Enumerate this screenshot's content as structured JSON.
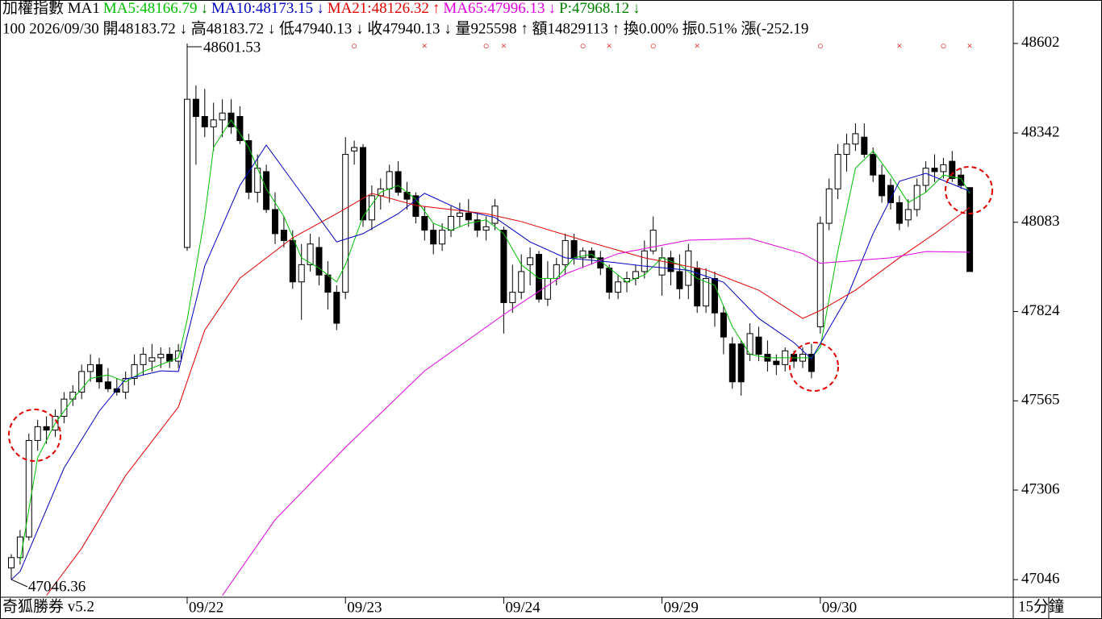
{
  "header": {
    "line1": [
      {
        "text": "加權指數 MA1",
        "color": "#000000"
      },
      {
        "text": "MA5:48166.79",
        "color": "#00c000"
      },
      {
        "text": "↓",
        "color": "#008000"
      },
      {
        "text": "MA10:48173.15",
        "color": "#0000c0"
      },
      {
        "text": "↓",
        "color": "#0000c0"
      },
      {
        "text": "MA21:48126.32",
        "color": "#e00000"
      },
      {
        "text": "↑",
        "color": "#e00000"
      },
      {
        "text": "MA65:47996.13",
        "color": "#e000e0"
      },
      {
        "text": "↓",
        "color": "#e000e0"
      },
      {
        "text": "P:47968.12",
        "color": "#008000"
      },
      {
        "text": "↓",
        "color": "#008000"
      }
    ],
    "line2": "100 2026/09/30 開48183.72 ↓ 高48183.72 ↓ 低47940.13 ↓ 收47940.13 ↓ 量925598 ↑ 額14829113 ↑ 換0.00% 振0.51% 漲(-252.19"
  },
  "footer": {
    "brand": "奇狐勝券 v5.2",
    "period": "15分鐘"
  },
  "chart_data": {
    "type": "candlestick",
    "categories": [
      null,
      null,
      null,
      null,
      null,
      null,
      null,
      null,
      null,
      null,
      null,
      null,
      null,
      null,
      null,
      null,
      null,
      null,
      null,
      null,
      "09/22",
      null,
      null,
      null,
      null,
      null,
      null,
      null,
      null,
      null,
      null,
      null,
      null,
      null,
      null,
      null,
      null,
      null,
      "09/23",
      null,
      null,
      null,
      null,
      null,
      null,
      null,
      null,
      null,
      null,
      null,
      null,
      null,
      null,
      null,
      null,
      null,
      "09/24",
      null,
      null,
      null,
      null,
      null,
      null,
      null,
      null,
      null,
      null,
      null,
      null,
      null,
      null,
      null,
      null,
      null,
      "09/29",
      null,
      null,
      null,
      null,
      null,
      null,
      null,
      null,
      null,
      null,
      null,
      null,
      null,
      null,
      null,
      null,
      null,
      "09/30",
      null,
      null,
      null,
      null,
      null,
      null,
      null,
      null,
      null,
      null,
      null,
      null,
      null,
      null,
      null,
      null,
      null
    ],
    "ohlc": [
      [
        47080,
        47120,
        47046.36,
        47110
      ],
      [
        47110,
        47190,
        47090,
        47170
      ],
      [
        47170,
        47470,
        47160,
        47450
      ],
      [
        47450,
        47510,
        47420,
        47490
      ],
      [
        47490,
        47520,
        47440,
        47480
      ],
      [
        47480,
        47540,
        47460,
        47520
      ],
      [
        47520,
        47590,
        47500,
        47570
      ],
      [
        47570,
        47610,
        47550,
        47590
      ],
      [
        47590,
        47670,
        47570,
        47650
      ],
      [
        47650,
        47700,
        47620,
        47670
      ],
      [
        47670,
        47690,
        47600,
        47620
      ],
      [
        47620,
        47660,
        47590,
        47600
      ],
      [
        47600,
        47630,
        47580,
        47590
      ],
      [
        47590,
        47650,
        47570,
        47630
      ],
      [
        47630,
        47700,
        47610,
        47670
      ],
      [
        47670,
        47720,
        47640,
        47700
      ],
      [
        47680,
        47730,
        47650,
        47690
      ],
      [
        47690,
        47720,
        47660,
        47700
      ],
      [
        47700,
        47720,
        47660,
        47680
      ],
      [
        47680,
        47730,
        47660,
        47710
      ],
      [
        48010,
        48601.53,
        48000,
        48440
      ],
      [
        48440,
        48480,
        48250,
        48390
      ],
      [
        48390,
        48470,
        48330,
        48360
      ],
      [
        48360,
        48430,
        48290,
        48380
      ],
      [
        48380,
        48440,
        48330,
        48400
      ],
      [
        48400,
        48440,
        48340,
        48360
      ],
      [
        48390,
        48420,
        48310,
        48320
      ],
      [
        48320,
        48340,
        48150,
        48170
      ],
      [
        48170,
        48280,
        48140,
        48240
      ],
      [
        48230,
        48250,
        48110,
        48120
      ],
      [
        48120,
        48170,
        48020,
        48050
      ],
      [
        48060,
        48100,
        48010,
        48030
      ],
      [
        48030,
        48060,
        47890,
        47910
      ],
      [
        47910,
        48020,
        47800,
        47960
      ],
      [
        47960,
        48050,
        47940,
        48020
      ],
      [
        48010,
        48040,
        47900,
        47930
      ],
      [
        47930,
        47970,
        47830,
        47880
      ],
      [
        47880,
        47900,
        47770,
        47790
      ],
      [
        47880,
        48330,
        47860,
        48280
      ],
      [
        48290,
        48320,
        48250,
        48300
      ],
      [
        48300,
        48310,
        48070,
        48090
      ],
      [
        48090,
        48190,
        48060,
        48160
      ],
      [
        48160,
        48210,
        48120,
        48180
      ],
      [
        48180,
        48250,
        48140,
        48230
      ],
      [
        48230,
        48260,
        48160,
        48170
      ],
      [
        48170,
        48200,
        48120,
        48150
      ],
      [
        48160,
        48170,
        48080,
        48100
      ],
      [
        48100,
        48130,
        48030,
        48060
      ],
      [
        48060,
        48080,
        47990,
        48020
      ],
      [
        48020,
        48080,
        48000,
        48060
      ],
      [
        48060,
        48130,
        48040,
        48100
      ],
      [
        48100,
        48140,
        48070,
        48110
      ],
      [
        48110,
        48150,
        48070,
        48090
      ],
      [
        48090,
        48110,
        48040,
        48060
      ],
      [
        48060,
        48100,
        48030,
        48070
      ],
      [
        48080,
        48150,
        48060,
        48130
      ],
      [
        48060,
        48070,
        47760,
        47850
      ],
      [
        47850,
        47960,
        47820,
        47880
      ],
      [
        47880,
        47990,
        47860,
        47940
      ],
      [
        47960,
        48010,
        47900,
        47980
      ],
      [
        47990,
        48000,
        47850,
        47860
      ],
      [
        47860,
        47970,
        47840,
        47920
      ],
      [
        47920,
        47980,
        47900,
        47960
      ],
      [
        47960,
        48050,
        47930,
        48030
      ],
      [
        48030,
        48050,
        47960,
        47980
      ],
      [
        47980,
        48010,
        47950,
        48000
      ],
      [
        48000,
        48010,
        47960,
        47980
      ],
      [
        47980,
        48000,
        47930,
        47950
      ],
      [
        47950,
        47960,
        47860,
        47880
      ],
      [
        47880,
        47930,
        47860,
        47910
      ],
      [
        47910,
        47940,
        47880,
        47920
      ],
      [
        47920,
        47960,
        47900,
        47940
      ],
      [
        47940,
        48030,
        47920,
        48000
      ],
      [
        48000,
        48100,
        47990,
        48060
      ],
      [
        47930,
        48010,
        47870,
        47980
      ],
      [
        47980,
        48000,
        47900,
        47940
      ],
      [
        47940,
        47990,
        47860,
        47890
      ],
      [
        47900,
        48020,
        47860,
        48000
      ],
      [
        47950,
        47970,
        47820,
        47840
      ],
      [
        47840,
        47950,
        47820,
        47920
      ],
      [
        47920,
        47940,
        47780,
        47820
      ],
      [
        47820,
        47840,
        47700,
        47750
      ],
      [
        47730,
        47750,
        47600,
        47620
      ],
      [
        47730,
        47740,
        47580,
        47620
      ],
      [
        47700,
        47790,
        47680,
        47760
      ],
      [
        47750,
        47780,
        47680,
        47700
      ],
      [
        47700,
        47740,
        47650,
        47680
      ],
      [
        47680,
        47700,
        47640,
        47670
      ],
      [
        47670,
        47720,
        47650,
        47710
      ],
      [
        47700,
        47710,
        47660,
        47680
      ],
      [
        47680,
        47720,
        47660,
        47700
      ],
      [
        47700,
        47730,
        47630,
        47650
      ],
      [
        47780,
        48100,
        47760,
        48080
      ],
      [
        48080,
        48210,
        48060,
        48180
      ],
      [
        48180,
        48310,
        48150,
        48280
      ],
      [
        48280,
        48340,
        48230,
        48310
      ],
      [
        48310,
        48370,
        48290,
        48340
      ],
      [
        48330,
        48370,
        48270,
        48280
      ],
      [
        48280,
        48300,
        48200,
        48220
      ],
      [
        48220,
        48250,
        48140,
        48160
      ],
      [
        48190,
        48210,
        48120,
        48140
      ],
      [
        48140,
        48160,
        48060,
        48080
      ],
      [
        48090,
        48150,
        48070,
        48120
      ],
      [
        48120,
        48210,
        48100,
        48190
      ],
      [
        48190,
        48260,
        48170,
        48240
      ],
      [
        48240,
        48280,
        48200,
        48230
      ],
      [
        48230,
        48270,
        48210,
        48250
      ],
      [
        48260,
        48290,
        48200,
        48210
      ],
      [
        48220,
        48240,
        48180,
        48190
      ],
      [
        48183.72,
        48183.72,
        47940.13,
        47940.13
      ]
    ],
    "up_color": "#ffffff",
    "down_color": "#000000",
    "series": [
      {
        "color": "#00c000",
        "x": [
          1,
          3,
          5,
          7,
          9,
          11,
          13,
          15,
          17,
          19,
          20,
          22,
          23,
          25,
          27,
          29,
          31,
          33,
          35,
          37,
          38,
          40,
          42,
          44,
          46,
          48,
          50,
          52,
          54,
          56,
          58,
          60,
          62,
          64,
          66,
          68,
          70,
          72,
          74,
          76,
          78,
          80,
          82,
          84,
          86,
          88,
          90,
          91,
          92,
          94,
          96,
          98,
          100,
          102,
          104,
          106,
          108,
          109
        ],
        "values": [
          47100,
          47400,
          47500,
          47570,
          47630,
          47640,
          47620,
          47650,
          47670,
          47690,
          47800,
          48100,
          48300,
          48380,
          48300,
          48180,
          48100,
          47980,
          47950,
          47910,
          47960,
          48100,
          48170,
          48190,
          48150,
          48080,
          48060,
          48080,
          48090,
          48050,
          47960,
          47920,
          47920,
          47980,
          47990,
          47950,
          47910,
          47930,
          47980,
          47960,
          47920,
          47900,
          47780,
          47700,
          47690,
          47690,
          47690,
          47690,
          47720,
          48000,
          48240,
          48290,
          48220,
          48140,
          48170,
          48220,
          48210,
          48166.79
        ]
      },
      {
        "color": "#0000c0",
        "x": [
          0,
          1,
          6,
          10,
          13,
          17,
          19,
          22,
          26,
          29,
          33,
          37,
          40,
          44,
          47,
          51,
          55,
          59,
          63,
          68,
          72,
          77,
          81,
          85,
          89,
          91,
          95,
          98,
          101,
          104,
          109
        ],
        "values": [
          47046,
          47070,
          47370,
          47535,
          47628,
          47652,
          47650,
          47956,
          48190,
          48307,
          48167,
          48026,
          48050,
          48108,
          48167,
          48120,
          48097,
          48026,
          47980,
          47968,
          47956,
          47944,
          47909,
          47804,
          47734,
          47687,
          47863,
          48050,
          48202,
          48225,
          48173.15
        ]
      },
      {
        "color": "#e00000",
        "x": [
          4,
          8,
          13,
          19,
          22,
          26,
          32,
          37,
          41,
          46,
          54,
          58,
          65,
          72,
          79,
          85,
          90,
          92,
          96,
          101,
          105,
          109
        ],
        "values": [
          47000,
          47137,
          47348,
          47547,
          47770,
          47921,
          48038,
          48108,
          48167,
          48132,
          48108,
          48085,
          48031,
          47980,
          47945,
          47886,
          47804,
          47827,
          47886,
          47980,
          48050,
          48126.32
        ]
      },
      {
        "color": "#e000e0",
        "x": [
          24,
          30,
          38,
          47,
          56,
          63,
          69,
          77,
          84,
          90,
          92,
          100,
          104,
          109
        ],
        "values": [
          47000,
          47220,
          47430,
          47652,
          47815,
          47933,
          47992,
          48031,
          48036,
          47992,
          47964,
          47980,
          47998,
          47996.13
        ]
      }
    ],
    "signals": [
      {
        "x": 39,
        "symbol": "○"
      },
      {
        "x": 47,
        "symbol": "×"
      },
      {
        "x": 54,
        "symbol": "○"
      },
      {
        "x": 56,
        "symbol": "×"
      },
      {
        "x": 65,
        "symbol": "○"
      },
      {
        "x": 68,
        "symbol": "×"
      },
      {
        "x": 73,
        "symbol": "○"
      },
      {
        "x": 78,
        "symbol": "×"
      },
      {
        "x": 92,
        "symbol": "○"
      },
      {
        "x": 101,
        "symbol": "×"
      },
      {
        "x": 106,
        "symbol": "○"
      },
      {
        "x": 109,
        "symbol": "×"
      }
    ],
    "signal_color": "#e00000",
    "ylim": [
      46995,
      48728
    ],
    "yticks": [
      48602,
      48342,
      48083,
      47824,
      47565,
      47306,
      47046
    ]
  }
}
